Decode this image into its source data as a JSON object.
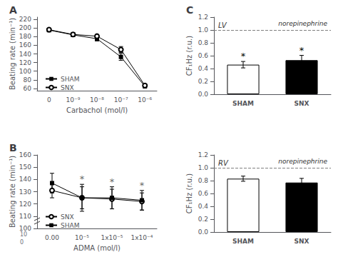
{
  "chart_data": [
    {
      "type": "line",
      "title": "A",
      "xlabel": "Carbachol (mol/l)",
      "ylabel": "Beating rate (min⁻¹)",
      "categories": [
        "0",
        "10⁻⁹",
        "10⁻⁸",
        "10⁻⁷",
        "10⁻⁶"
      ],
      "series": [
        {
          "name": "SHAM",
          "color": "black",
          "marker": "square",
          "values": [
            195,
            184,
            175,
            133,
            65
          ],
          "errors": [
            4,
            4,
            5,
            8,
            3
          ]
        },
        {
          "name": "SNX",
          "color": "black",
          "marker": "open_circle",
          "values": [
            196,
            185,
            181,
            150,
            67
          ],
          "errors": [
            3,
            4,
            4,
            7,
            3
          ]
        }
      ],
      "ylim": [
        55,
        225
      ],
      "yticks": [
        60,
        80,
        100,
        120,
        140,
        160,
        180,
        200,
        220
      ],
      "legend": "lower left",
      "grid": false
    },
    {
      "type": "line",
      "title": "B",
      "xlabel": "ADMA (mol/l)",
      "ylabel": "Beating rate (min⁻¹)",
      "categories": [
        "0.00",
        "10⁻⁵",
        "1x10⁻⁵",
        "1x10⁻⁴"
      ],
      "series": [
        {
          "name": "SNX",
          "color": "black",
          "marker": "open_circle",
          "values": [
            131,
            125,
            124,
            122
          ],
          "errors": [
            6,
            9,
            8,
            7
          ]
        },
        {
          "name": "SHAM",
          "color": "black",
          "marker": "square",
          "values": [
            137,
            125,
            125,
            123
          ],
          "errors": [
            8,
            11,
            9,
            8
          ]
        }
      ],
      "annotations": [
        {
          "text": "*",
          "x": "10⁻⁵",
          "color": "dimgray"
        },
        {
          "text": "*",
          "x": "1x10⁻⁵",
          "color": "dimgray"
        },
        {
          "text": "*",
          "x": "1x10⁻⁴",
          "color": "dimgray"
        }
      ],
      "ybreak_labels": [
        "10",
        "0"
      ],
      "ylim": [
        100,
        160
      ],
      "yticks": [
        100,
        110,
        120,
        130,
        140,
        150,
        160
      ],
      "legend": "lower left",
      "grid": false
    },
    {
      "type": "bar",
      "title": "C",
      "subtitle": "LV",
      "ylabel": "CF₁Hz (r.u.)",
      "categories": [
        "SHAM",
        "SNX"
      ],
      "values": [
        0.46,
        0.53
      ],
      "errors": [
        0.05,
        0.075
      ],
      "colors": [
        "white",
        "black"
      ],
      "annotations": [
        {
          "text": "*",
          "x": "SHAM"
        },
        {
          "text": "*",
          "x": "SNX"
        }
      ],
      "reference_line": {
        "y": 1.0,
        "label": "norepinephrine",
        "color": "gray",
        "line_style": "dashed"
      },
      "ylim": [
        0,
        1.2
      ],
      "yticks": [
        {
          "value": 0,
          "label": "0.0"
        },
        0.2,
        0.4,
        0.6,
        0.8,
        {
          "value": 1,
          "label": "1.0"
        },
        1.2
      ],
      "grid": false
    },
    {
      "type": "bar",
      "subtitle": "RV",
      "ylabel": "CF₁Hz (r.u.)",
      "categories": [
        "SHAM",
        "SNX"
      ],
      "values": [
        0.83,
        0.77
      ],
      "errors": [
        0.04,
        0.065
      ],
      "colors": [
        "white",
        "black"
      ],
      "reference_line": {
        "y": 1.0,
        "label": "norepinephrine",
        "color": "gray",
        "line_style": "dashed"
      },
      "ylim": [
        0,
        1.2
      ],
      "yticks": [
        {
          "value": 0,
          "label": "0.0"
        },
        0.2,
        0.4,
        0.6,
        0.8,
        {
          "value": 1,
          "label": "1.0"
        },
        1.2
      ],
      "grid": false
    }
  ]
}
